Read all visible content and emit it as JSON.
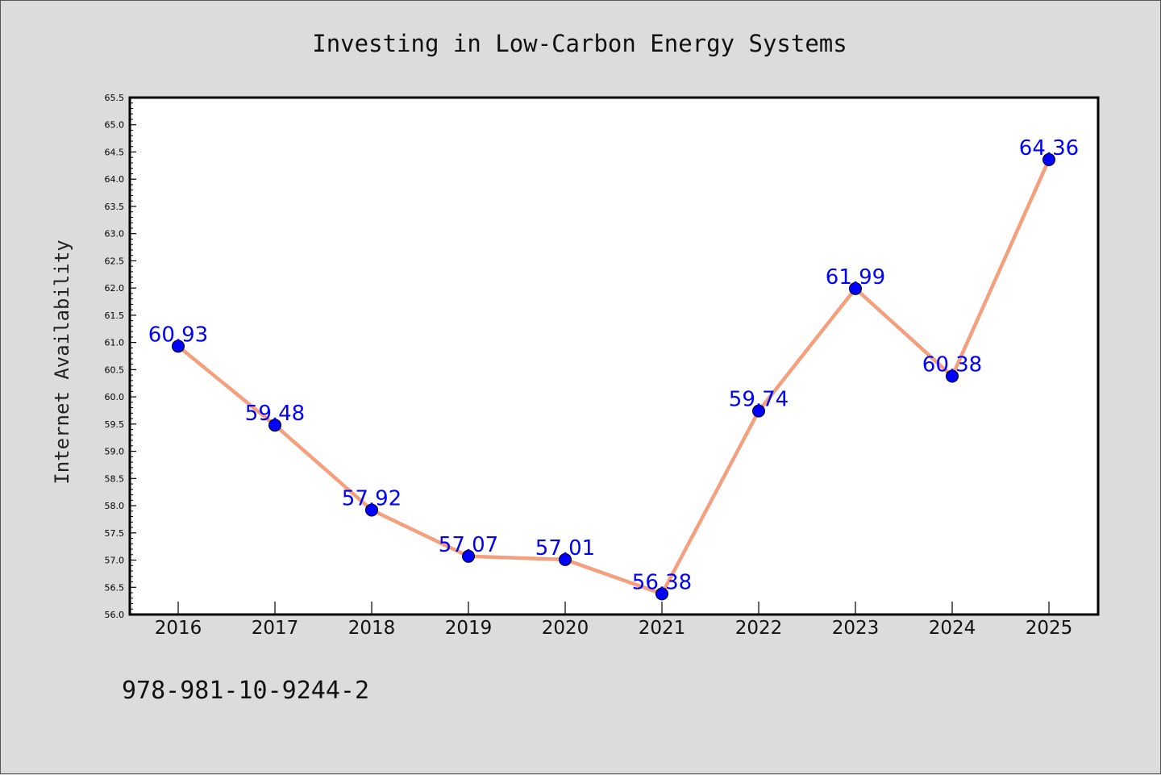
{
  "chart_data": {
    "type": "line",
    "title": "Investing in Low-Carbon Energy Systems",
    "xlabel": "",
    "ylabel": "Internet Availability",
    "categories": [
      "2016",
      "2017",
      "2018",
      "2019",
      "2020",
      "2021",
      "2022",
      "2023",
      "2024",
      "2025"
    ],
    "series": [
      {
        "values": [
          60.93,
          59.48,
          57.92,
          57.07,
          57.01,
          56.38,
          59.74,
          61.99,
          60.38,
          64.36
        ],
        "line_color": "#f4a07e",
        "marker_color": "#0000ff"
      }
    ],
    "data_labels": [
      "60.93",
      "59.48",
      "57.92",
      "57.07",
      "57.01",
      "56.38",
      "59.74",
      "61.99",
      "60.38",
      "64.36"
    ],
    "ylim": [
      56.0,
      65.5
    ],
    "yticks": [
      "56.0",
      "56.5",
      "57.0",
      "57.5",
      "58.0",
      "58.5",
      "59.0",
      "59.5",
      "60.0",
      "60.5",
      "61.0",
      "61.5",
      "62.0",
      "62.5",
      "63.0",
      "63.5",
      "64.0",
      "64.5",
      "65.0",
      "65.5"
    ],
    "grid": false,
    "label_color": "#0000ff",
    "background": "#dcdcdc",
    "plot_background": "#ffffff"
  },
  "footer_text": "978-981-10-9244-2"
}
